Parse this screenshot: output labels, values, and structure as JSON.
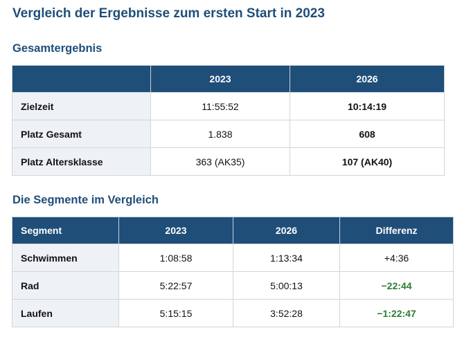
{
  "title": "Vergleich der Ergebnisse zum ersten Start in 2023",
  "overall": {
    "heading": "Gesamtergebnis",
    "columns": [
      "",
      "2023",
      "2026"
    ],
    "rows": [
      {
        "label": "Zielzeit",
        "v2023": "11:55:52",
        "v2026": "10:14:19"
      },
      {
        "label": "Platz Gesamt",
        "v2023": "1.838",
        "v2026": "608"
      },
      {
        "label": "Platz Altersklasse",
        "v2023": "363 (AK35)",
        "v2026": "107 (AK40)"
      }
    ]
  },
  "segments": {
    "heading": "Die Segmente im Vergleich",
    "columns": [
      "Segment",
      "2023",
      "2026",
      "Differenz"
    ],
    "rows": [
      {
        "label": "Schwimmen",
        "v2023": "1:08:58",
        "v2026": "1:13:34",
        "diff": "+4:36",
        "diff_style": "normal"
      },
      {
        "label": "Rad",
        "v2023": "5:22:57",
        "v2026": "5:00:13",
        "diff": "−22:44",
        "diff_style": "green"
      },
      {
        "label": "Laufen",
        "v2023": "5:15:15",
        "v2026": "3:52:28",
        "diff": "−1:22:47",
        "diff_style": "green"
      }
    ]
  },
  "colors": {
    "header_bg": "#1f4e79",
    "title": "#1f4e79",
    "label_bg": "#eef2f6",
    "positive_diff": "#2e7d32"
  }
}
